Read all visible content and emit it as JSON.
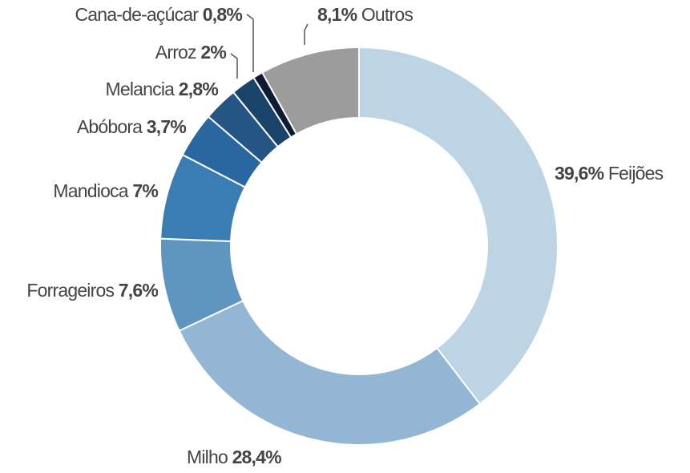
{
  "chart_data": {
    "type": "pie",
    "categories": [
      "Feijões",
      "Milho",
      "Forrageiros",
      "Mandioca",
      "Abóbora",
      "Melancia",
      "Arroz",
      "Cana-de-açúcar",
      "Outros"
    ],
    "values": [
      39.6,
      28.4,
      7.6,
      7,
      3.7,
      2.8,
      2,
      0.8,
      8.1
    ],
    "value_labels": [
      "39,6%",
      "28,4%",
      "7,6%",
      "7%",
      "3,7%",
      "2,8%",
      "2%",
      "0,8%",
      "8,1%"
    ],
    "colors": [
      "#bdd4e5",
      "#92b6d3",
      "#5f96c0",
      "#3a7db3",
      "#2a67a0",
      "#245585",
      "#1a4369",
      "#0d1b35",
      "#9c9c9c"
    ]
  }
}
